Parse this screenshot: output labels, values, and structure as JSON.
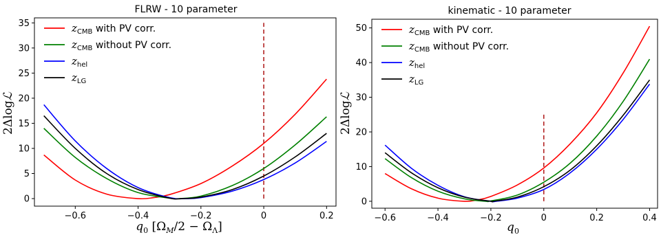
{
  "chart_data": [
    {
      "type": "line",
      "title": "FLRW - 10 parameter",
      "xlabel": "q₀ [Ω_M/2 − Ω_Λ]",
      "ylabel": "2ΔlogL",
      "xlim": [
        -0.73,
        0.23
      ],
      "ylim": [
        -1.5,
        36
      ],
      "xticks": [
        -0.6,
        -0.4,
        -0.2,
        0.0,
        0.2
      ],
      "yticks": [
        0,
        5,
        10,
        15,
        20,
        25,
        30,
        35
      ],
      "vline": {
        "x": 0.0,
        "y0": 0,
        "y1": 35,
        "color": "#b22222",
        "style": "dashed"
      },
      "grid": false,
      "legend_position": "top-left",
      "series": [
        {
          "name": "z_CMB with PV corr.",
          "color": "#ff0000",
          "x": [
            -0.7,
            -0.6,
            -0.5,
            -0.4,
            -0.35,
            -0.3,
            -0.2,
            -0.1,
            0.0,
            0.1,
            0.2
          ],
          "y": [
            8.7,
            3.7,
            0.9,
            0.0,
            0.2,
            0.8,
            3.0,
            6.5,
            11.0,
            16.8,
            23.8
          ]
        },
        {
          "name": "z_CMB without PV corr.",
          "color": "#008000",
          "x": [
            -0.7,
            -0.6,
            -0.5,
            -0.4,
            -0.3,
            -0.27,
            -0.2,
            -0.1,
            0.0,
            0.1,
            0.2
          ],
          "y": [
            14.0,
            8.2,
            4.0,
            1.2,
            0.1,
            0.0,
            0.5,
            2.6,
            6.0,
            10.7,
            16.3
          ]
        },
        {
          "name": "z_hel",
          "color": "#0000ff",
          "x": [
            -0.7,
            -0.6,
            -0.5,
            -0.4,
            -0.3,
            -0.25,
            -0.2,
            -0.1,
            0.0,
            0.1,
            0.2
          ],
          "y": [
            18.7,
            11.5,
            6.0,
            2.2,
            0.2,
            0.0,
            0.2,
            1.5,
            3.8,
            7.1,
            11.4
          ]
        },
        {
          "name": "z_LG",
          "color": "#000000",
          "x": [
            -0.7,
            -0.6,
            -0.5,
            -0.4,
            -0.3,
            -0.26,
            -0.2,
            -0.1,
            0.0,
            0.1,
            0.2
          ],
          "y": [
            16.5,
            10.0,
            5.0,
            1.8,
            0.1,
            0.0,
            0.3,
            1.8,
            4.5,
            8.3,
            13.0
          ]
        }
      ]
    },
    {
      "type": "line",
      "title": "kinematic - 10 parameter",
      "xlabel": "q₀",
      "ylabel": "2ΔlogL",
      "xlim": [
        -0.65,
        0.43
      ],
      "ylim": [
        -2,
        52.5
      ],
      "xticks": [
        -0.6,
        -0.4,
        -0.2,
        0.0,
        0.2,
        0.4
      ],
      "yticks": [
        0,
        10,
        20,
        30,
        40,
        50
      ],
      "vline": {
        "x": 0.0,
        "y0": 0,
        "y1": 25,
        "color": "#b22222",
        "style": "dashed"
      },
      "grid": false,
      "legend_position": "top-left",
      "series": [
        {
          "name": "z_CMB with PV corr.",
          "color": "#ff0000",
          "x": [
            -0.6,
            -0.5,
            -0.4,
            -0.3,
            -0.25,
            -0.2,
            -0.1,
            0.0,
            0.1,
            0.2,
            0.3,
            0.4
          ],
          "y": [
            8.0,
            3.6,
            0.9,
            0.0,
            0.4,
            1.4,
            4.7,
            9.6,
            16.6,
            25.5,
            37.0,
            50.5
          ]
        },
        {
          "name": "z_CMB without PV corr.",
          "color": "#008000",
          "x": [
            -0.6,
            -0.5,
            -0.4,
            -0.3,
            -0.22,
            -0.2,
            -0.1,
            0.0,
            0.1,
            0.2,
            0.3,
            0.4
          ],
          "y": [
            12.3,
            6.8,
            2.9,
            0.7,
            0.0,
            0.1,
            1.8,
            5.5,
            11.0,
            18.8,
            28.8,
            41.0
          ]
        },
        {
          "name": "z_hel",
          "color": "#0000ff",
          "x": [
            -0.6,
            -0.5,
            -0.4,
            -0.3,
            -0.2,
            -0.18,
            -0.1,
            0.0,
            0.1,
            0.2,
            0.3,
            0.4
          ],
          "y": [
            16.2,
            9.5,
            4.6,
            1.3,
            0.0,
            0.0,
            0.9,
            3.4,
            8.2,
            15.0,
            23.6,
            33.8
          ]
        },
        {
          "name": "z_LG",
          "color": "#000000",
          "x": [
            -0.6,
            -0.5,
            -0.4,
            -0.3,
            -0.2,
            -0.19,
            -0.1,
            0.0,
            0.1,
            0.2,
            0.3,
            0.4
          ],
          "y": [
            14.0,
            8.2,
            3.9,
            1.2,
            0.0,
            0.0,
            1.2,
            4.2,
            9.0,
            16.0,
            24.8,
            35.0
          ]
        }
      ]
    }
  ],
  "legend_labels": [
    {
      "main": "z",
      "sub": "CMB",
      "rest": " with PV corr."
    },
    {
      "main": "z",
      "sub": "CMB",
      "rest": " without PV corr."
    },
    {
      "main": "z",
      "sub": "hel",
      "rest": ""
    },
    {
      "main": "z",
      "sub": "LG",
      "rest": ""
    }
  ],
  "axis_text": {
    "ylabel_main": "2Δlog",
    "ylabel_L": "ℒ",
    "left_xlabel_q": "q",
    "left_xlabel_sub": "0",
    "left_xlabel_rest": " [Ω",
    "left_xlabel_M": "M",
    "left_xlabel_mid": "/2 − Ω",
    "left_xlabel_L": "Λ",
    "left_xlabel_end": "]",
    "right_xlabel_q": "q",
    "right_xlabel_sub": "0"
  }
}
